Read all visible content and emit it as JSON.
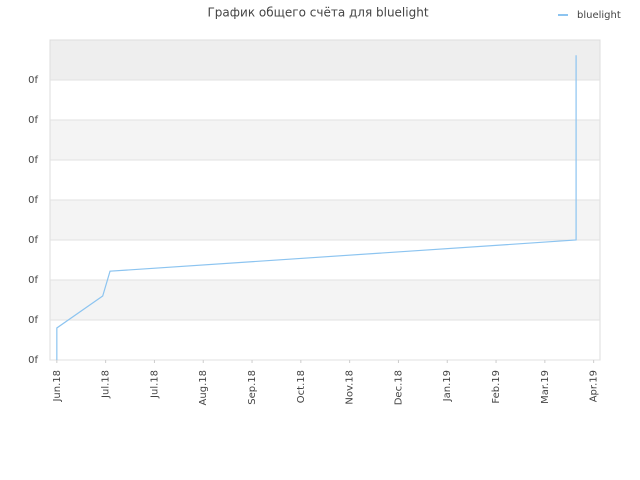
{
  "chart_data": {
    "type": "line",
    "title": "График общего счёта для bluelight",
    "x": [
      0,
      0,
      0.94,
      1.09,
      10.64,
      10.64
    ],
    "series": [
      {
        "name": "bluelight",
        "color": "#8cc4f0",
        "values": [
          0,
          0.8,
          1.6,
          2.22,
          3.0,
          7.62
        ]
      }
    ],
    "xlim": [
      -0.14,
      11.13
    ],
    "xticks": [
      {
        "value": 0,
        "label": "Jun.18"
      },
      {
        "value": 1,
        "label": "Jul.18"
      },
      {
        "value": 2,
        "label": "Jul.18"
      },
      {
        "value": 3,
        "label": "Aug.18"
      },
      {
        "value": 4,
        "label": "Sep.18"
      },
      {
        "value": 5,
        "label": "Oct.18"
      },
      {
        "value": 6,
        "label": "Nov.18"
      },
      {
        "value": 7,
        "label": "Dec.18"
      },
      {
        "value": 8,
        "label": "Jan.19"
      },
      {
        "value": 9,
        "label": "Feb.19"
      },
      {
        "value": 10,
        "label": "Mar.19"
      },
      {
        "value": 11,
        "label": "Apr.19"
      }
    ],
    "ylim": [
      0,
      8
    ],
    "yticks": [
      {
        "value": 0,
        "label": "0f"
      },
      {
        "value": 1,
        "label": "0f"
      },
      {
        "value": 2,
        "label": "0f"
      },
      {
        "value": 3,
        "label": "0f"
      },
      {
        "value": 4,
        "label": "0f"
      },
      {
        "value": 5,
        "label": "0f"
      },
      {
        "value": 6,
        "label": "0f"
      },
      {
        "value": 7,
        "label": "0f"
      }
    ],
    "grid": true,
    "legend": "top-right"
  }
}
